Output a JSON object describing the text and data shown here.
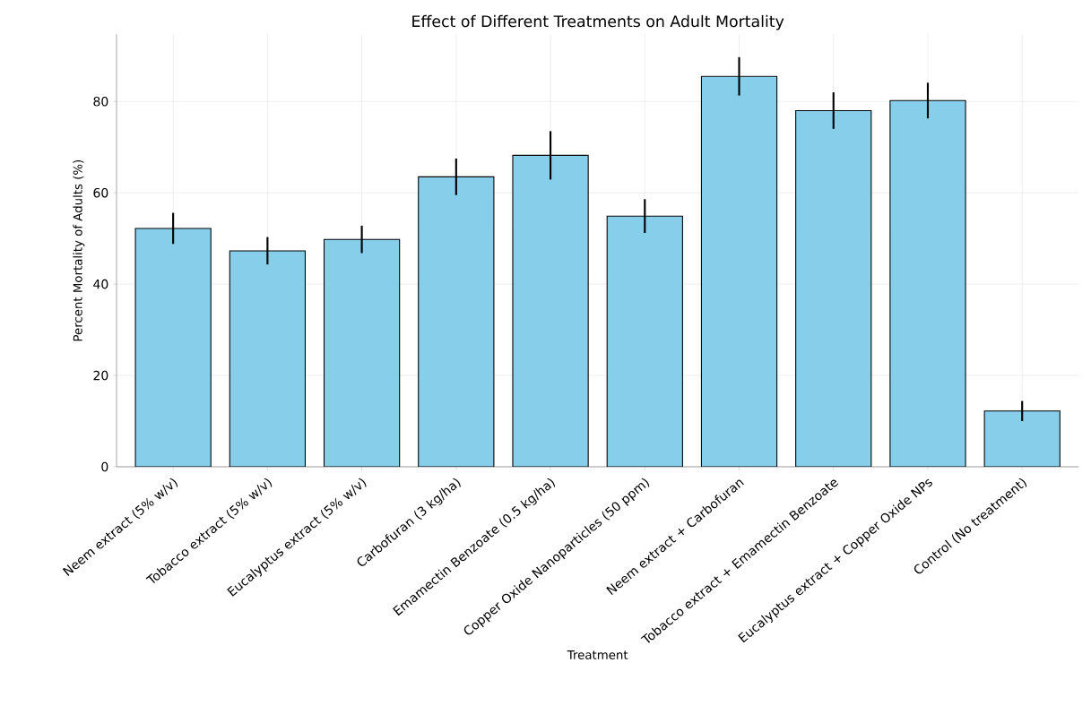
{
  "chart_data": {
    "type": "bar",
    "title": "Effect of Different Treatments on Adult Mortality",
    "xlabel": "Treatment",
    "ylabel": "Percent Mortality of Adults (%)",
    "categories": [
      "Neem extract (5% w/v)",
      "Tobacco extract (5% w/v)",
      "Eucalyptus extract (5% w/v)",
      "Carbofuran (3 kg/ha)",
      "Emamectin Benzoate (0.5 kg/ha)",
      "Copper Oxide Nanoparticles (50 ppm)",
      "Neem extract + Carbofuran",
      "Tobacco extract + Emamectin Benzoate",
      "Eucalyptus extract + Copper Oxide NPs",
      "Control (No treatment)"
    ],
    "values": [
      52.2,
      47.3,
      49.8,
      63.5,
      68.2,
      54.9,
      85.5,
      78,
      80.2,
      12.2
    ],
    "errors": [
      3.4,
      3,
      3,
      4,
      5.3,
      3.7,
      4.2,
      4,
      3.9,
      2.2
    ],
    "color": "#87ceeb",
    "ylim": [
      0,
      94.7
    ],
    "yticks": [
      0,
      20,
      40,
      60,
      80
    ],
    "grid": true
  }
}
